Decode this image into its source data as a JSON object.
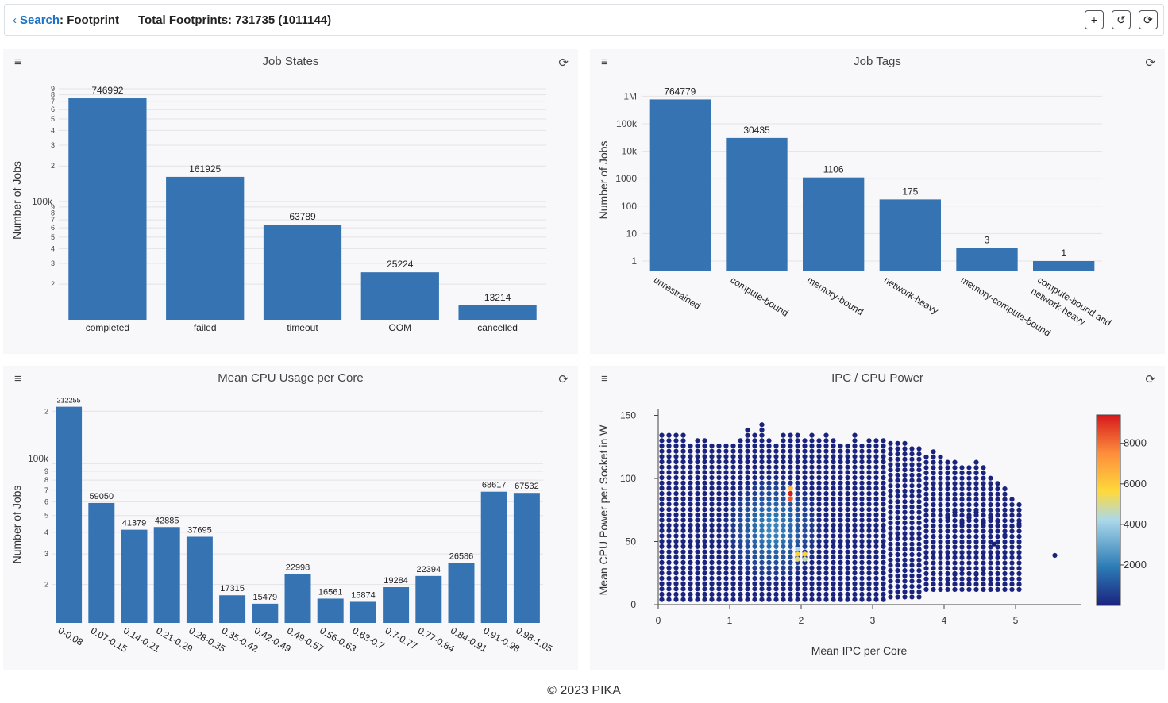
{
  "header": {
    "search_label": "Search",
    "crumb_rest": ": Footprint",
    "total": "Total Footprints: 731735 (1011144)",
    "buttons": [
      "+",
      "↺",
      "⟳"
    ]
  },
  "panels": {
    "job_states": {
      "title": "Job States",
      "menu_icon": "≡",
      "refresh_icon": "⟳"
    },
    "job_tags": {
      "title": "Job Tags",
      "menu_icon": "≡",
      "refresh_icon": "⟳"
    },
    "cpu_usage": {
      "title": "Mean CPU Usage per Core",
      "menu_icon": "≡",
      "refresh_icon": "⟳"
    },
    "ipc_power": {
      "title": "IPC / CPU Power",
      "menu_icon": "≡",
      "refresh_icon": "⟳"
    }
  },
  "footer": "© 2023 PIKA",
  "chart_data": [
    {
      "type": "bar",
      "title": "Job States",
      "ylabel": "Number of Jobs",
      "yscale": "log",
      "categories": [
        "completed",
        "failed",
        "timeout",
        "OOM",
        "cancelled"
      ],
      "values": [
        746992,
        161925,
        63789,
        25224,
        13214
      ]
    },
    {
      "type": "bar",
      "title": "Job Tags",
      "ylabel": "Number of Jobs",
      "yscale": "log",
      "yticks": [
        "1",
        "10",
        "100",
        "1000",
        "10k",
        "100k",
        "1M"
      ],
      "categories": [
        "unrestrained",
        "compute-bound",
        "memory-bound",
        "network-heavy",
        "memory-compute-bound",
        "compute-bound and network-heavy"
      ],
      "values": [
        764779,
        30435,
        1106,
        175,
        3,
        1
      ]
    },
    {
      "type": "bar",
      "title": "Mean CPU Usage per Core",
      "ylabel": "Number of Jobs",
      "yscale": "log",
      "categories": [
        "0-0.08",
        "0.07-0.15",
        "0.14-0.21",
        "0.21-0.29",
        "0.28-0.35",
        "0.35-0.42",
        "0.42-0.49",
        "0.49-0.57",
        "0.56-0.63",
        "0.63-0.7",
        "0.7-0.77",
        "0.77-0.84",
        "0.84-0.91",
        "0.91-0.98",
        "0.98-1.05"
      ],
      "values": [
        212255,
        59050,
        41379,
        42885,
        37695,
        17315,
        15479,
        22998,
        16561,
        15874,
        19284,
        22394,
        26586,
        68617,
        67532
      ]
    },
    {
      "type": "heatmap",
      "title": "IPC / CPU Power",
      "xlabel": "Mean IPC per Core",
      "ylabel": "Mean CPU Power per Socket in W",
      "xlim": [
        0,
        5.9
      ],
      "ylim": [
        0,
        152
      ],
      "xticks": [
        "0",
        "1",
        "2",
        "3",
        "4",
        "5"
      ],
      "yticks": [
        "0",
        "50",
        "100",
        "150"
      ],
      "colorbar_ticks": [
        "2000",
        "4000",
        "6000",
        "8000"
      ],
      "colorbar_max": 9400,
      "outlier_point": [
        5.55,
        39
      ]
    }
  ]
}
